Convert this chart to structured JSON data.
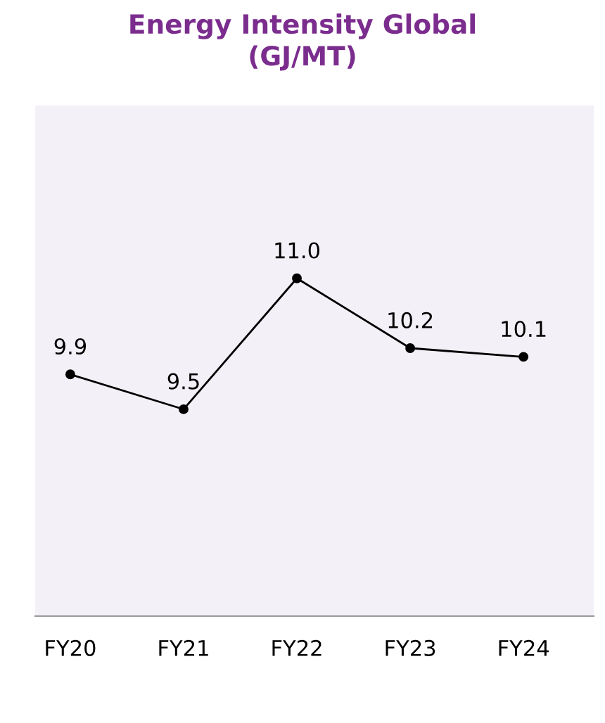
{
  "chart_data": {
    "type": "line",
    "title": "Energy Intensity Global\n(GJ/MT)",
    "categories": [
      "FY20",
      "FY21",
      "FY22",
      "FY23",
      "FY24"
    ],
    "series": [
      {
        "color": "#000000",
        "values": [
          9.9,
          9.5,
          11.0,
          10.2,
          10.1
        ],
        "value_labels": [
          "9.9",
          "9.5",
          "11.0",
          "10.2",
          "10.1"
        ]
      }
    ],
    "marker": "circle",
    "line_style": "solid",
    "grid": false,
    "legend": false
  }
}
